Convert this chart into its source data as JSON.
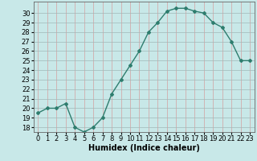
{
  "x": [
    0,
    1,
    2,
    3,
    4,
    5,
    6,
    7,
    8,
    9,
    10,
    11,
    12,
    13,
    14,
    15,
    16,
    17,
    18,
    19,
    20,
    21,
    22,
    23
  ],
  "y": [
    19.5,
    20.0,
    20.0,
    20.5,
    18.0,
    17.5,
    18.0,
    19.0,
    21.5,
    23.0,
    24.5,
    26.0,
    28.0,
    29.0,
    30.2,
    30.5,
    30.5,
    30.2,
    30.0,
    29.0,
    28.5,
    27.0,
    25.0,
    25.0
  ],
  "xlabel": "Humidex (Indice chaleur)",
  "ylim": [
    17.5,
    31.2
  ],
  "xlim": [
    -0.5,
    23.5
  ],
  "yticks": [
    18,
    19,
    20,
    21,
    22,
    23,
    24,
    25,
    26,
    27,
    28,
    29,
    30
  ],
  "xticks": [
    0,
    1,
    2,
    3,
    4,
    5,
    6,
    7,
    8,
    9,
    10,
    11,
    12,
    13,
    14,
    15,
    16,
    17,
    18,
    19,
    20,
    21,
    22,
    23
  ],
  "line_color": "#2e7d6e",
  "marker": "D",
  "marker_size": 2.0,
  "bg_color": "#c8e8e8",
  "vgrid_color": "#d4a0a0",
  "hgrid_color": "#a0b8b8",
  "xlabel_fontsize": 7,
  "tick_fontsize": 6,
  "linewidth": 1.0
}
